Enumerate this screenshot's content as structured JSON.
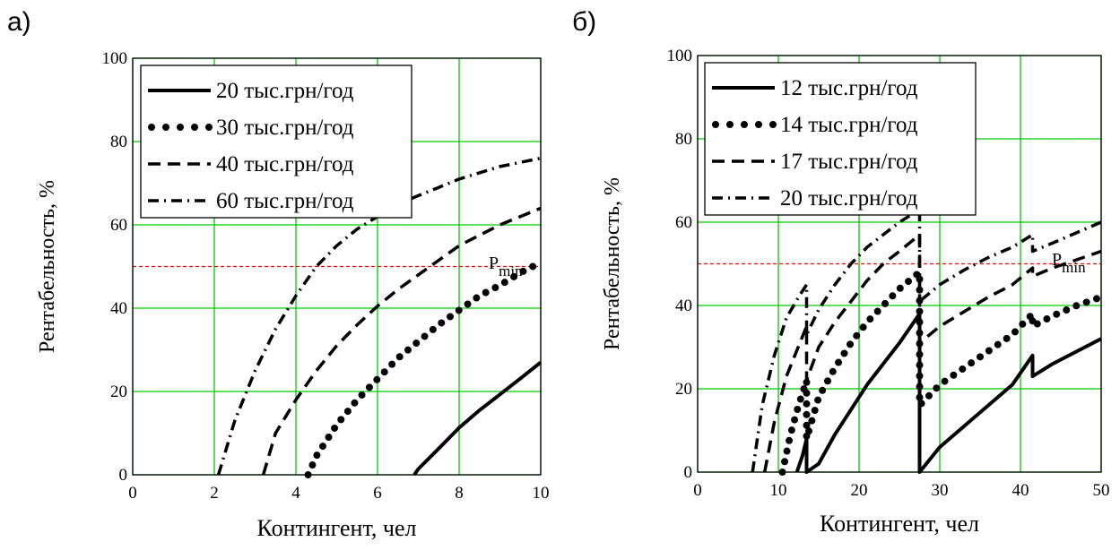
{
  "panels": [
    {
      "letter": "а)"
    },
    {
      "letter": "б)"
    }
  ],
  "chart_data": [
    {
      "type": "line",
      "panel_label": "а)",
      "xlabel": "Контингент, чел",
      "ylabel": "Рентабельность, %",
      "xlim": [
        0,
        10
      ],
      "ylim": [
        0,
        100
      ],
      "x_ticks": [
        "0",
        "2",
        "4",
        "6",
        "8",
        "10"
      ],
      "y_ticks": [
        "0",
        "20",
        "40",
        "60",
        "80",
        "100"
      ],
      "grid": true,
      "legend_position": "top-left",
      "reference_line": {
        "y": 50,
        "label": "P",
        "label_sub": "min",
        "color": "#ff0000"
      },
      "series": [
        {
          "name": "20 тыс.грн/год",
          "style": "solid",
          "x": [
            6.9,
            7.0,
            7.5,
            8.0,
            8.5,
            9.0,
            9.5,
            10.0
          ],
          "y": [
            0,
            1.4,
            6.3,
            11.3,
            15.5,
            19.3,
            23.1,
            27
          ]
        },
        {
          "name": "30 тыс.грн/год",
          "style": "dotted",
          "x": [
            4.3,
            4.5,
            5.0,
            5.5,
            6.0,
            6.5,
            7.0,
            7.5,
            8.0,
            8.5,
            9.0,
            9.5,
            10.0
          ],
          "y": [
            0,
            4.5,
            12,
            18,
            23,
            28,
            32,
            36,
            39.5,
            43,
            45.5,
            48.5,
            51
          ]
        },
        {
          "name": "40 тыс.грн/год",
          "style": "dashed",
          "x": [
            3.2,
            3.5,
            4.0,
            4.5,
            5.0,
            5.5,
            6.0,
            6.5,
            7.0,
            7.5,
            8.0,
            8.5,
            9.0,
            9.5,
            10.0
          ],
          "y": [
            0,
            10,
            18,
            25,
            31,
            36,
            40.5,
            44.5,
            48,
            51.5,
            55,
            57.5,
            60,
            62,
            64
          ]
        },
        {
          "name": "60 тыс.грн/год",
          "style": "dashdot",
          "x": [
            2.1,
            2.5,
            3.0,
            3.5,
            4.0,
            4.5,
            5.0,
            5.5,
            6.0,
            6.5,
            7.0,
            7.5,
            8.0,
            8.5,
            9.0,
            9.5,
            10.0
          ],
          "y": [
            0,
            13,
            25,
            35,
            43,
            50,
            55,
            59,
            62,
            65,
            67,
            69,
            71,
            72.5,
            74,
            75,
            76
          ]
        }
      ]
    },
    {
      "type": "line",
      "panel_label": "б)",
      "xlabel": "Контингент, чел",
      "ylabel": "Рентабельность, %",
      "xlim": [
        0,
        50
      ],
      "ylim": [
        0,
        100
      ],
      "x_ticks": [
        "0",
        "10",
        "20",
        "30",
        "40",
        "50"
      ],
      "y_ticks": [
        "0",
        "20",
        "40",
        "60",
        "80",
        "100"
      ],
      "grid": true,
      "legend_position": "top-left",
      "reference_line": {
        "y": 50,
        "label": "P",
        "label_sub": "min",
        "color": "#ff0000"
      },
      "series": [
        {
          "name": "12 тыс.грн/год",
          "style": "solid",
          "x": [
            12.3,
            13.0,
            13.5,
            13.5,
            15.0,
            17.0,
            19.0,
            21.0,
            23.0,
            25.0,
            27.5,
            27.5,
            30.0,
            33.0,
            36.0,
            39.0,
            41.5,
            41.5,
            44.0,
            47.0,
            50.0
          ],
          "y": [
            0,
            4,
            8,
            0,
            2,
            9,
            15,
            21,
            26,
            31,
            38,
            0,
            6,
            11,
            16,
            21,
            28,
            23,
            26,
            29,
            32
          ]
        },
        {
          "name": "14 тыс.грн/год",
          "style": "dotted",
          "x": [
            10.5,
            11.5,
            12.5,
            13.5,
            13.5,
            15.0,
            17.0,
            19.0,
            21.0,
            23.0,
            25.0,
            27.5,
            27.5,
            30.0,
            33.0,
            36.0,
            39.0,
            41.5,
            41.5,
            44.0,
            47.0,
            50.0
          ],
          "y": [
            0,
            9,
            16,
            22,
            8,
            18,
            25,
            31,
            36,
            40,
            44,
            48,
            16,
            21,
            25,
            29,
            33,
            38,
            35,
            37.5,
            40,
            42
          ]
        },
        {
          "name": "17 тыс.грн/год",
          "style": "dashed",
          "x": [
            8.3,
            9.5,
            11.0,
            13.5,
            13.5,
            15.0,
            17.0,
            19.0,
            21.0,
            23.0,
            25.0,
            27.5,
            27.5,
            30.0,
            33.0,
            36.0,
            39.0,
            41.5,
            41.5,
            44.0,
            47.0,
            50.0
          ],
          "y": [
            0,
            12,
            23,
            35,
            22,
            30,
            36,
            41,
            46,
            50,
            53,
            57,
            31,
            35,
            38.5,
            42,
            45,
            49,
            47,
            49,
            51,
            53
          ]
        },
        {
          "name": "20 тыс.грн/год",
          "style": "dashdot",
          "x": [
            6.8,
            8.0,
            9.5,
            11.0,
            12.5,
            13.5,
            13.5,
            15.0,
            17.0,
            19.0,
            21.0,
            23.0,
            25.0,
            27.5,
            27.5,
            30.0,
            33.0,
            36.0,
            39.0,
            41.5,
            41.5,
            44.0,
            47.0,
            50.0
          ],
          "y": [
            0,
            16,
            28,
            37,
            42,
            45,
            33,
            39,
            45,
            50,
            54,
            57,
            60,
            63,
            41,
            45,
            48.5,
            51.5,
            54,
            57,
            53,
            55,
            57.5,
            60
          ]
        }
      ]
    }
  ]
}
